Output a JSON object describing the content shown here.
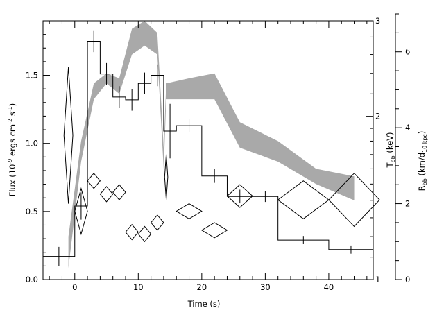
{
  "chart_data": {
    "type": "line",
    "xlabel": "Time (s)",
    "x_axis": {
      "range": [
        -5,
        47
      ],
      "ticks": [
        0,
        10,
        20,
        30,
        40
      ],
      "tick_labels": [
        "0",
        "10",
        "20",
        "30",
        "40"
      ]
    },
    "y_left": {
      "label_main": "Flux (10",
      "label_exp1": "-9",
      "label_mid": " ergs cm",
      "label_exp2": "-2",
      "label_mid2": " s",
      "label_exp3": "-1",
      "label_end": ")",
      "range": [
        0,
        1.9
      ],
      "ticks": [
        0,
        0.5,
        1.0,
        1.5
      ],
      "tick_labels": [
        "0.0",
        "0.5",
        "1.0",
        "1.5"
      ]
    },
    "y_right_T": {
      "label_main": "T",
      "label_sub": "bb",
      "label_end": " (keV)",
      "scale": "log",
      "range": [
        1,
        3
      ],
      "ticks": [
        1,
        2,
        3
      ],
      "tick_labels": [
        "1",
        "2",
        "3"
      ]
    },
    "y_right_R": {
      "label_main": "R",
      "label_sub": "bb",
      "label_mid": " (km/d",
      "label_sub2": "10 kpc",
      "label_end": ")",
      "range": [
        0,
        7
      ],
      "ticks": [
        0,
        2,
        4,
        6
      ],
      "tick_labels": [
        "0",
        "2",
        "4",
        "6"
      ]
    },
    "flux_histogram": [
      {
        "x0": -5,
        "x1": 0,
        "y": 0.17,
        "err": 0.07
      },
      {
        "x0": 0,
        "x1": 2,
        "y": 0.54,
        "err": 0.1
      },
      {
        "x0": 2,
        "x1": 4,
        "y": 1.75,
        "err": 0.08
      },
      {
        "x0": 4,
        "x1": 6,
        "y": 1.51,
        "err": 0.08
      },
      {
        "x0": 6,
        "x1": 8,
        "y": 1.34,
        "err": 0.08
      },
      {
        "x0": 8,
        "x1": 10,
        "y": 1.32,
        "err": 0.08
      },
      {
        "x0": 10,
        "x1": 12,
        "y": 1.44,
        "err": 0.08
      },
      {
        "x0": 12,
        "x1": 14,
        "y": 1.5,
        "err": 0.08
      },
      {
        "x0": 14,
        "x1": 16,
        "y": 1.09,
        "err": 0.2
      },
      {
        "x0": 16,
        "x1": 20,
        "y": 1.13,
        "err": 0.05
      },
      {
        "x0": 20,
        "x1": 24,
        "y": 0.76,
        "err": 0.05
      },
      {
        "x0": 24,
        "x1": 28,
        "y": 0.61,
        "err": 0.05
      },
      {
        "x0": 28,
        "x1": 32,
        "y": 0.61,
        "err": 0.04
      },
      {
        "x0": 32,
        "x1": 40,
        "y": 0.29,
        "err": 0.03
      },
      {
        "x0": 40,
        "x1": 47,
        "y": 0.22,
        "err": 0.03
      }
    ],
    "temperature_band": {
      "x": [
        -1,
        1,
        3,
        5,
        7,
        9,
        11,
        13,
        14,
        14.4,
        18,
        22,
        26,
        32,
        38,
        44
      ],
      "lower": [
        1.05,
        1.65,
        2.15,
        2.3,
        2.2,
        2.6,
        2.7,
        2.6,
        1.6,
        2.15,
        2.15,
        2.15,
        1.75,
        1.65,
        1.5,
        1.4
      ],
      "upper": [
        1.2,
        1.8,
        2.3,
        2.4,
        2.35,
        2.9,
        3.0,
        2.85,
        1.75,
        2.3,
        2.35,
        2.4,
        1.95,
        1.8,
        1.6,
        1.55
      ]
    },
    "radius_diamonds": [
      {
        "x": -1,
        "xerr": 0.7,
        "y": 3.8,
        "yerr": 1.8
      },
      {
        "x": 1,
        "xerr": 1.0,
        "y": 1.8,
        "yerr": 0.6
      },
      {
        "x": 3,
        "xerr": 1.0,
        "y": 2.6,
        "yerr": 0.2
      },
      {
        "x": 5,
        "xerr": 1.0,
        "y": 2.25,
        "yerr": 0.2
      },
      {
        "x": 7,
        "xerr": 1.0,
        "y": 2.3,
        "yerr": 0.2
      },
      {
        "x": 9,
        "xerr": 1.0,
        "y": 1.25,
        "yerr": 0.2
      },
      {
        "x": 11,
        "xerr": 1.0,
        "y": 1.2,
        "yerr": 0.2
      },
      {
        "x": 13,
        "xerr": 1.0,
        "y": 1.5,
        "yerr": 0.2
      },
      {
        "x": 14.4,
        "xerr": 0.25,
        "y": 2.7,
        "yerr": 0.6
      },
      {
        "x": 18,
        "xerr": 2.0,
        "y": 1.8,
        "yerr": 0.2
      },
      {
        "x": 22,
        "xerr": 2.0,
        "y": 1.3,
        "yerr": 0.2
      },
      {
        "x": 26,
        "xerr": 2.0,
        "y": 2.2,
        "yerr": 0.3
      },
      {
        "x": 36,
        "xerr": 4.0,
        "y": 2.1,
        "yerr": 0.5
      },
      {
        "x": 44,
        "xerr": 4.0,
        "y": 2.1,
        "yerr": 0.7
      }
    ],
    "grid": false,
    "legend": "none"
  }
}
